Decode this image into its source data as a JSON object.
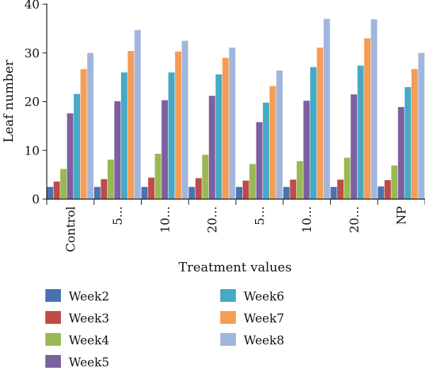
{
  "chart_data": {
    "type": "bar",
    "title": "",
    "xlabel": "Treatment values",
    "ylabel": "Leaf number",
    "ylim": [
      0,
      40
    ],
    "yticks": [
      0,
      10,
      20,
      30,
      40
    ],
    "grid": false,
    "legend_position": "bottom",
    "categories": [
      "Control",
      "5...",
      "10...",
      "20...",
      "5...",
      "10...",
      "20...",
      "NP"
    ],
    "series": [
      {
        "name": "Week2",
        "color": "#4a72b0",
        "values": [
          2.5,
          2.5,
          2.5,
          2.5,
          2.5,
          2.5,
          2.5,
          2.6
        ]
      },
      {
        "name": "Week3",
        "color": "#be4b48",
        "values": [
          3.6,
          4.1,
          4.4,
          4.3,
          3.8,
          4.0,
          4.0,
          3.9
        ]
      },
      {
        "name": "Week4",
        "color": "#98b954",
        "values": [
          6.2,
          8.1,
          9.3,
          9.1,
          7.2,
          7.8,
          8.5,
          6.9
        ]
      },
      {
        "name": "Week5",
        "color": "#7d60a0",
        "values": [
          17.6,
          20.1,
          20.3,
          21.2,
          15.8,
          20.2,
          21.5,
          18.9
        ]
      },
      {
        "name": "Week6",
        "color": "#46aac5",
        "values": [
          21.6,
          26.0,
          26.0,
          25.6,
          19.8,
          27.1,
          27.4,
          23.0
        ]
      },
      {
        "name": "Week7",
        "color": "#f59d56",
        "values": [
          26.7,
          30.4,
          30.3,
          29.0,
          23.2,
          31.1,
          33.0,
          26.7
        ]
      },
      {
        "name": "Week8",
        "color": "#a2b6dc",
        "values": [
          30.0,
          34.7,
          32.5,
          31.1,
          26.4,
          37.0,
          36.9,
          30.0
        ]
      }
    ]
  }
}
